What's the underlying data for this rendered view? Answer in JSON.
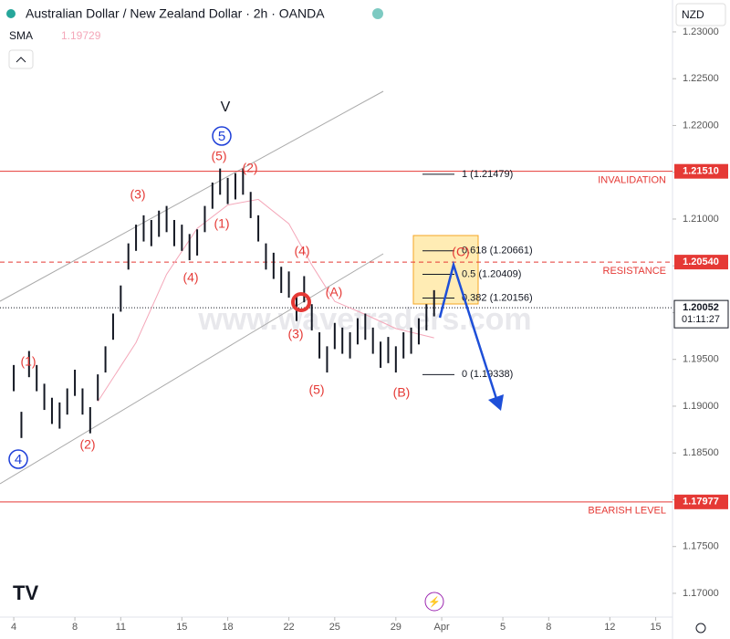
{
  "chart_data": {
    "type": "ohlc",
    "title": "Australian Dollar / New Zealand Dollar · 2h · OANDA",
    "indicator": "SMA",
    "indicator_value": 1.19729,
    "currency": "NZD",
    "bar_color": "#131722",
    "x": [
      0,
      0.5,
      1,
      1.5,
      2,
      2.5,
      3,
      3.5,
      4,
      4.5,
      5,
      5.5,
      6,
      6.5,
      7,
      7.5,
      8,
      8.5,
      9,
      9.5,
      10,
      10.5,
      11,
      11.5,
      12,
      12.5,
      13,
      13.5,
      14,
      14.5,
      15,
      15.5,
      16,
      16.5,
      17,
      17.5,
      18,
      18.5,
      19,
      19.5,
      20,
      20.5,
      21,
      21.5,
      22,
      22.5,
      23,
      23.5,
      24,
      24.5,
      25,
      25.5,
      26,
      26.5,
      27,
      27.5
    ],
    "high": [
      1.1944,
      1.1894,
      1.1959,
      1.1944,
      1.1924,
      1.1909,
      1.1904,
      1.1919,
      1.1939,
      1.1919,
      1.1899,
      1.1934,
      1.1964,
      1.1999,
      1.2029,
      1.2074,
      1.2094,
      1.2104,
      1.2099,
      1.2109,
      1.2114,
      1.2099,
      1.2094,
      1.2084,
      1.2089,
      1.2114,
      1.2139,
      1.2154,
      1.2144,
      1.2149,
      1.2154,
      1.2129,
      1.2104,
      1.2074,
      1.2064,
      1.2049,
      1.2044,
      1.2019,
      1.2039,
      1.2009,
      1.1979,
      1.1964,
      1.1989,
      1.1984,
      1.1979,
      1.1994,
      1.1999,
      1.1984,
      1.1969,
      1.1974,
      1.1964,
      1.1979,
      1.1984,
      1.1994,
      1.2009,
      1.2024
    ],
    "low": [
      1.1916,
      1.1866,
      1.1931,
      1.1916,
      1.1896,
      1.1881,
      1.1876,
      1.1891,
      1.1911,
      1.1891,
      1.1871,
      1.1906,
      1.1936,
      1.1971,
      1.2001,
      1.2046,
      1.2066,
      1.2076,
      1.2071,
      1.2081,
      1.2086,
      1.2071,
      1.2066,
      1.2056,
      1.2061,
      1.2086,
      1.2111,
      1.2126,
      1.2116,
      1.2121,
      1.2126,
      1.2101,
      1.2076,
      1.2046,
      1.2036,
      1.2021,
      1.2016,
      1.1991,
      1.2011,
      1.1981,
      1.1951,
      1.1936,
      1.1961,
      1.1956,
      1.1951,
      1.1966,
      1.1971,
      1.1956,
      1.1941,
      1.1946,
      1.1936,
      1.1951,
      1.1956,
      1.1966,
      1.1981,
      1.1996
    ],
    "sma": {
      "color": "#f4a7b9",
      "x": [
        5.5,
        8,
        10,
        12,
        14,
        16,
        18,
        19.5,
        21,
        23,
        25,
        27.5
      ],
      "values": [
        1.1905,
        1.1968,
        1.2041,
        1.209,
        1.2115,
        1.2121,
        1.2095,
        1.2051,
        1.2012,
        1.1998,
        1.1983,
        1.1973
      ]
    },
    "xlim": [
      -0.9,
      43.1
    ],
    "xticks": [
      {
        "value": 0,
        "label": "4"
      },
      {
        "value": 4,
        "label": "8"
      },
      {
        "value": 7,
        "label": "11"
      },
      {
        "value": 11,
        "label": "15"
      },
      {
        "value": 14,
        "label": "18"
      },
      {
        "value": 18,
        "label": "22"
      },
      {
        "value": 21,
        "label": "25"
      },
      {
        "value": 25,
        "label": "29"
      },
      {
        "value": 28,
        "label": "Apr"
      },
      {
        "value": 32,
        "label": "5"
      },
      {
        "value": 35,
        "label": "8"
      },
      {
        "value": 39,
        "label": "12"
      },
      {
        "value": 42,
        "label": "15"
      }
    ],
    "ylim": [
      1.16746,
      1.23341
    ],
    "yticks": [
      {
        "value": 1.17,
        "label": "1.17000"
      },
      {
        "value": 1.175,
        "label": "1.17500"
      },
      {
        "value": 1.18,
        "label": "1.18000"
      },
      {
        "value": 1.185,
        "label": "1.18500"
      },
      {
        "value": 1.19,
        "label": "1.19000"
      },
      {
        "value": 1.195,
        "label": "1.19500"
      },
      {
        "value": 1.2,
        "label": "1.20000"
      },
      {
        "value": 1.205,
        "label": "1.20500"
      },
      {
        "value": 1.21,
        "label": "1.21000"
      },
      {
        "value": 1.215,
        "label": "1.21500"
      },
      {
        "value": 1.22,
        "label": "1.22000"
      },
      {
        "value": 1.225,
        "label": "1.22500"
      },
      {
        "value": 1.23,
        "label": "1.23000"
      }
    ],
    "level_color": "#e53935",
    "levels": [
      {
        "name": "INVALIDATION",
        "value": 1.2151,
        "label": "1.21510",
        "style": "solid"
      },
      {
        "name": "RESISTANCE",
        "value": 1.2054,
        "label": "1.20540",
        "style": "dashed"
      },
      {
        "name": "BEARISH LEVEL",
        "value": 1.17977,
        "label": "1.17977",
        "style": "solid"
      }
    ],
    "last_price": {
      "value": 1.20052,
      "label": "1.20052",
      "countdown": "01:11:27"
    },
    "fib_levels": [
      {
        "label": "1 (1.21479)",
        "value": 1.21479
      },
      {
        "label": "0.618 (1.20661)",
        "value": 1.20661
      },
      {
        "label": "0.5 (1.20409)",
        "value": 1.20409
      },
      {
        "label": "0.382 (1.20156)",
        "value": 1.20156
      },
      {
        "label": "0 (1.19338)",
        "value": 1.19338
      }
    ],
    "wave_labels": [
      "V",
      "5",
      "(5)",
      "(2)",
      "(3)",
      "(1)",
      "(4)",
      "(4)",
      "(A)",
      "(3)",
      "(5)",
      "(B)",
      "(C)",
      "(1)",
      "(2)",
      "4"
    ],
    "watermark": "www.wavetraders.com"
  }
}
